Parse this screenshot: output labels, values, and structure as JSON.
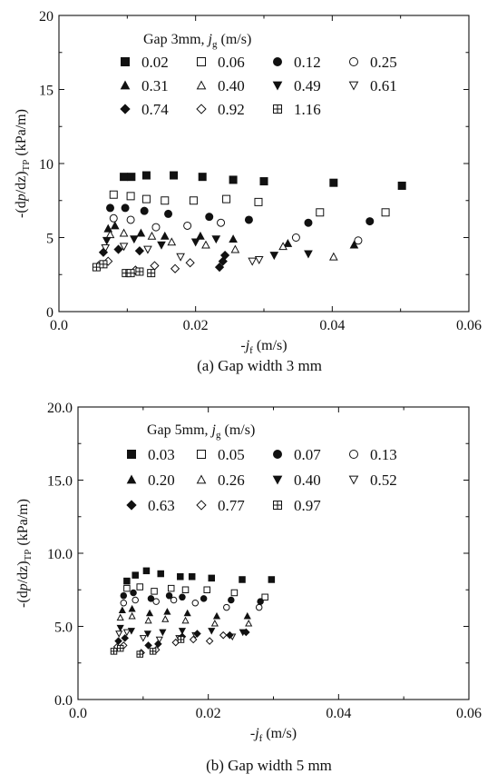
{
  "chart_data": [
    {
      "type": "scatter",
      "caption": "(a)  Gap width 3 mm",
      "xlabel": {
        "pre": "-",
        "var": "j",
        "sub": "f",
        "post": " (m/s)"
      },
      "ylabel": {
        "pre": "-(d",
        "var": "p",
        "mid": "/dz)",
        "sub": "TP",
        "post": " (kPa/m)"
      },
      "xlim": [
        0,
        0.06
      ],
      "ylim": [
        0,
        20
      ],
      "x_ticks": [
        0,
        0.02,
        0.04,
        0.06
      ],
      "x_tick_labels": [
        "0.0",
        "0.02",
        "0.04",
        "0.06"
      ],
      "y_ticks": [
        0,
        5,
        10,
        15,
        20
      ],
      "y_tick_labels": [
        "0",
        "5",
        "10",
        "15",
        "20"
      ],
      "grid": false,
      "legend": {
        "position": "top-left",
        "title_pre": "Gap 3mm,  ",
        "title_var": "j",
        "title_sub": "g",
        "title_post": " (m/s)",
        "columns": 4
      },
      "series": [
        {
          "name": "0.02",
          "marker": "square-filled",
          "points": [
            [
              0.0095,
              9.1
            ],
            [
              0.0106,
              9.1
            ],
            [
              0.0128,
              9.2
            ],
            [
              0.0168,
              9.2
            ],
            [
              0.021,
              9.1
            ],
            [
              0.0255,
              8.9
            ],
            [
              0.03,
              8.8
            ],
            [
              0.0402,
              8.7
            ],
            [
              0.0502,
              8.5
            ]
          ]
        },
        {
          "name": "0.06",
          "marker": "square-open",
          "points": [
            [
              0.008,
              7.9
            ],
            [
              0.0105,
              7.8
            ],
            [
              0.0128,
              7.6
            ],
            [
              0.0155,
              7.5
            ],
            [
              0.0197,
              7.5
            ],
            [
              0.0245,
              7.6
            ],
            [
              0.0292,
              7.4
            ],
            [
              0.0382,
              6.7
            ],
            [
              0.0478,
              6.7
            ]
          ]
        },
        {
          "name": "0.12",
          "marker": "circle-filled",
          "points": [
            [
              0.0075,
              7.0
            ],
            [
              0.0097,
              7.0
            ],
            [
              0.0125,
              6.8
            ],
            [
              0.016,
              6.6
            ],
            [
              0.022,
              6.4
            ],
            [
              0.0278,
              6.2
            ],
            [
              0.0365,
              6.0
            ],
            [
              0.0455,
              6.1
            ]
          ]
        },
        {
          "name": "0.25",
          "marker": "circle-open",
          "points": [
            [
              0.008,
              6.3
            ],
            [
              0.0105,
              6.2
            ],
            [
              0.0142,
              5.7
            ],
            [
              0.0188,
              5.8
            ],
            [
              0.0237,
              6.0
            ],
            [
              0.0347,
              5.0
            ],
            [
              0.0438,
              4.8
            ]
          ]
        },
        {
          "name": "0.31",
          "marker": "triangle-filled",
          "points": [
            [
              0.0072,
              5.6
            ],
            [
              0.0082,
              5.8
            ],
            [
              0.012,
              5.3
            ],
            [
              0.0155,
              5.1
            ],
            [
              0.0207,
              5.1
            ],
            [
              0.0255,
              4.9
            ],
            [
              0.0335,
              4.6
            ],
            [
              0.0432,
              4.5
            ]
          ]
        },
        {
          "name": "0.40",
          "marker": "triangle-open",
          "points": [
            [
              0.0075,
              5.2
            ],
            [
              0.0095,
              5.3
            ],
            [
              0.0136,
              5.1
            ],
            [
              0.0165,
              4.7
            ],
            [
              0.0215,
              4.5
            ],
            [
              0.0258,
              4.2
            ],
            [
              0.0328,
              4.4
            ],
            [
              0.0402,
              3.7
            ]
          ]
        },
        {
          "name": "0.49",
          "marker": "triangle-down-filled",
          "points": [
            [
              0.007,
              4.8
            ],
            [
              0.011,
              4.9
            ],
            [
              0.015,
              4.5
            ],
            [
              0.02,
              4.7
            ],
            [
              0.023,
              4.9
            ],
            [
              0.0315,
              3.8
            ],
            [
              0.0365,
              3.9
            ]
          ]
        },
        {
          "name": "0.61",
          "marker": "triangle-down-open",
          "points": [
            [
              0.0068,
              4.3
            ],
            [
              0.0095,
              4.4
            ],
            [
              0.013,
              4.2
            ],
            [
              0.0178,
              3.7
            ],
            [
              0.0283,
              3.4
            ],
            [
              0.0293,
              3.5
            ]
          ]
        },
        {
          "name": "0.74",
          "marker": "diamond-filled",
          "points": [
            [
              0.0065,
              4.0
            ],
            [
              0.0087,
              4.2
            ],
            [
              0.0118,
              4.1
            ],
            [
              0.0235,
              3.0
            ],
            [
              0.024,
              3.4
            ],
            [
              0.0243,
              3.8
            ]
          ]
        },
        {
          "name": "0.92",
          "marker": "diamond-open",
          "points": [
            [
              0.0058,
              3.1
            ],
            [
              0.0072,
              3.4
            ],
            [
              0.0112,
              2.8
            ],
            [
              0.014,
              3.1
            ],
            [
              0.017,
              2.9
            ],
            [
              0.0192,
              3.3
            ]
          ]
        },
        {
          "name": "1.16",
          "marker": "square-plus",
          "points": [
            [
              0.0055,
              3.0
            ],
            [
              0.0065,
              3.2
            ],
            [
              0.0098,
              2.6
            ],
            [
              0.0105,
              2.6
            ],
            [
              0.0118,
              2.7
            ],
            [
              0.0135,
              2.6
            ]
          ]
        }
      ]
    },
    {
      "type": "scatter",
      "caption": "(b)  Gap width 5 mm",
      "xlabel": {
        "pre": "-",
        "var": "j",
        "sub": "f",
        "post": " (m/s)"
      },
      "ylabel": {
        "pre": "-(d",
        "var": "p",
        "mid": "/dz)",
        "sub": "TP",
        "post": " (kPa/m)"
      },
      "xlim": [
        0,
        0.06
      ],
      "ylim": [
        0,
        20
      ],
      "x_ticks": [
        0,
        0.02,
        0.04,
        0.06
      ],
      "x_tick_labels": [
        "0.0",
        "0.02",
        "0.04",
        "0.06"
      ],
      "y_ticks": [
        0,
        5,
        10,
        15,
        20
      ],
      "y_tick_labels": [
        "0.0",
        "5.0",
        "10.0",
        "15.0",
        "20.0"
      ],
      "grid": false,
      "legend": {
        "position": "top-left",
        "title_pre": "Gap 5mm,  ",
        "title_var": "j",
        "title_sub": "g",
        "title_post": " (m/s)",
        "columns": 4
      },
      "series": [
        {
          "name": "0.03",
          "marker": "square-filled",
          "points": [
            [
              0.0075,
              8.1
            ],
            [
              0.0088,
              8.5
            ],
            [
              0.0105,
              8.8
            ],
            [
              0.0127,
              8.6
            ],
            [
              0.0157,
              8.4
            ],
            [
              0.0175,
              8.4
            ],
            [
              0.0205,
              8.3
            ],
            [
              0.0252,
              8.2
            ],
            [
              0.0297,
              8.2
            ]
          ]
        },
        {
          "name": "0.05",
          "marker": "square-open",
          "points": [
            [
              0.0075,
              7.6
            ],
            [
              0.0095,
              7.7
            ],
            [
              0.0117,
              7.4
            ],
            [
              0.0143,
              7.6
            ],
            [
              0.0165,
              7.5
            ],
            [
              0.0198,
              7.5
            ],
            [
              0.024,
              7.3
            ],
            [
              0.0287,
              7.0
            ]
          ]
        },
        {
          "name": "0.07",
          "marker": "circle-filled",
          "points": [
            [
              0.007,
              7.1
            ],
            [
              0.0085,
              7.3
            ],
            [
              0.0112,
              6.9
            ],
            [
              0.014,
              7.1
            ],
            [
              0.016,
              7.0
            ],
            [
              0.0193,
              6.9
            ],
            [
              0.0235,
              6.8
            ],
            [
              0.028,
              6.7
            ]
          ]
        },
        {
          "name": "0.13",
          "marker": "circle-open",
          "points": [
            [
              0.007,
              6.6
            ],
            [
              0.0088,
              6.8
            ],
            [
              0.012,
              6.7
            ],
            [
              0.0147,
              6.8
            ],
            [
              0.018,
              6.6
            ],
            [
              0.0228,
              6.3
            ],
            [
              0.0278,
              6.3
            ]
          ]
        },
        {
          "name": "0.20",
          "marker": "triangle-filled",
          "points": [
            [
              0.0068,
              6.1
            ],
            [
              0.0083,
              6.2
            ],
            [
              0.011,
              5.9
            ],
            [
              0.0137,
              6.0
            ],
            [
              0.0168,
              5.9
            ],
            [
              0.0213,
              5.7
            ],
            [
              0.026,
              5.7
            ]
          ]
        },
        {
          "name": "0.26",
          "marker": "triangle-open",
          "points": [
            [
              0.0065,
              5.6
            ],
            [
              0.0083,
              5.7
            ],
            [
              0.0108,
              5.4
            ],
            [
              0.0134,
              5.5
            ],
            [
              0.0165,
              5.4
            ],
            [
              0.021,
              5.2
            ],
            [
              0.0262,
              5.2
            ]
          ]
        },
        {
          "name": "0.40",
          "marker": "triangle-down-filled",
          "points": [
            [
              0.0065,
              4.9
            ],
            [
              0.0082,
              4.7
            ],
            [
              0.0107,
              4.5
            ],
            [
              0.013,
              4.6
            ],
            [
              0.016,
              4.7
            ],
            [
              0.0205,
              4.7
            ],
            [
              0.0253,
              4.6
            ]
          ]
        },
        {
          "name": "0.52",
          "marker": "triangle-down-open",
          "points": [
            [
              0.0063,
              4.5
            ],
            [
              0.0075,
              4.6
            ],
            [
              0.01,
              4.2
            ],
            [
              0.0125,
              4.1
            ],
            [
              0.0155,
              4.2
            ],
            [
              0.018,
              4.4
            ],
            [
              0.0237,
              4.3
            ]
          ]
        },
        {
          "name": "0.63",
          "marker": "diamond-filled",
          "points": [
            [
              0.0062,
              4.0
            ],
            [
              0.0072,
              4.2
            ],
            [
              0.0108,
              3.7
            ],
            [
              0.0123,
              3.8
            ],
            [
              0.016,
              4.3
            ],
            [
              0.0183,
              4.5
            ],
            [
              0.0233,
              4.4
            ],
            [
              0.0258,
              4.6
            ]
          ]
        },
        {
          "name": "0.77",
          "marker": "diamond-open",
          "points": [
            [
              0.006,
              3.6
            ],
            [
              0.007,
              3.7
            ],
            [
              0.0097,
              3.2
            ],
            [
              0.012,
              3.4
            ],
            [
              0.015,
              3.9
            ],
            [
              0.0177,
              4.1
            ],
            [
              0.0202,
              4.0
            ],
            [
              0.0223,
              4.4
            ]
          ]
        },
        {
          "name": "0.97",
          "marker": "square-plus",
          "points": [
            [
              0.0055,
              3.3
            ],
            [
              0.0065,
              3.5
            ],
            [
              0.0095,
              3.1
            ],
            [
              0.0115,
              3.3
            ],
            [
              0.0158,
              4.1
            ]
          ]
        }
      ]
    }
  ]
}
